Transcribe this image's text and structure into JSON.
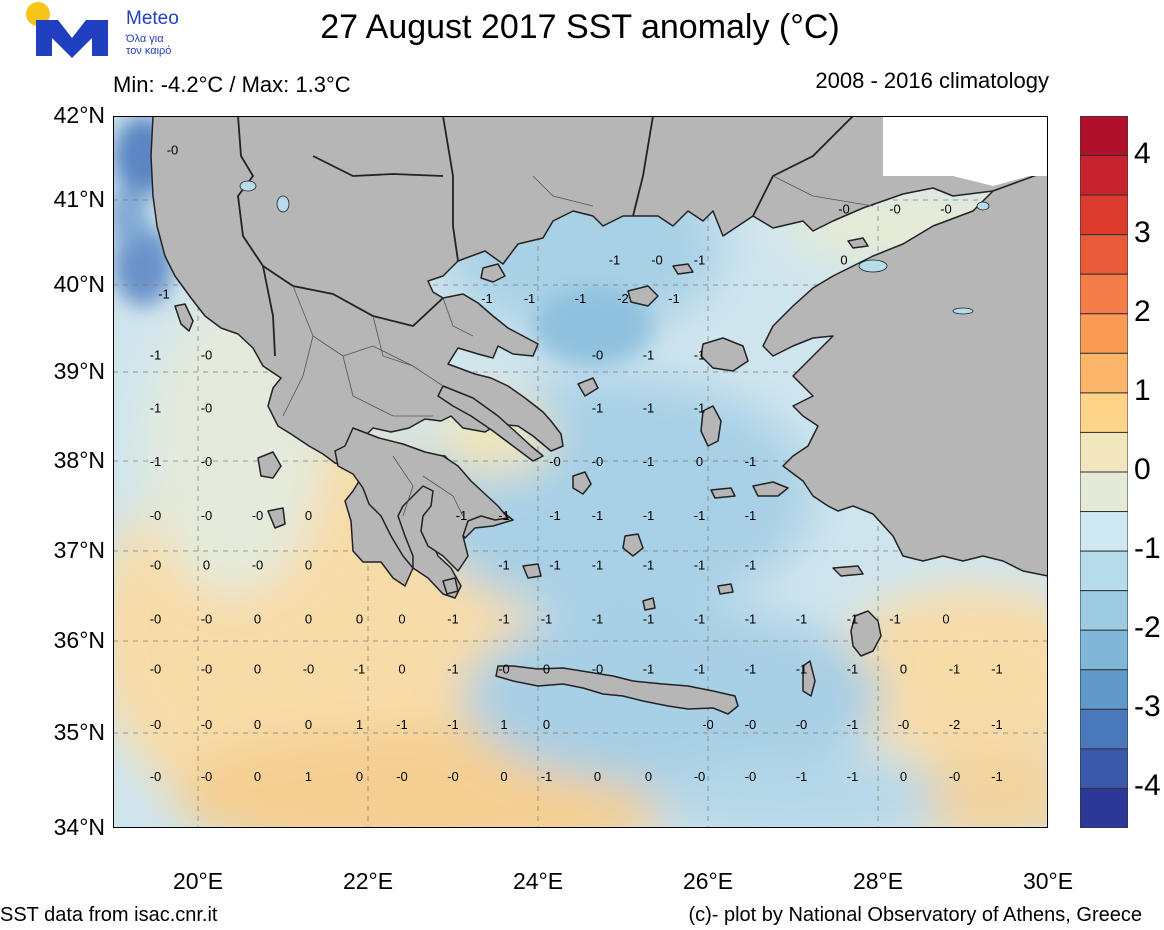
{
  "header": {
    "title": "27 August 2017 SST anomaly (°C)",
    "minmax": "Min: -4.2°C / Max: 1.3°C",
    "climatology": "2008 - 2016 climatology"
  },
  "logo": {
    "name": "Meteo",
    "tagline_1": "Όλα για",
    "tagline_2": "τον καιρό",
    "colors": {
      "sun": "#f5c518",
      "mark": "#1f3fbf"
    }
  },
  "axes": {
    "lat_labels": [
      "42°N",
      "41°N",
      "40°N",
      "39°N",
      "38°N",
      "37°N",
      "36°N",
      "35°N",
      "34°N"
    ],
    "lon_labels": [
      "20°E",
      "22°E",
      "24°E",
      "26°E",
      "28°E",
      "30°E"
    ],
    "lat_range": [
      34,
      42
    ],
    "lon_range": [
      19,
      30
    ],
    "grid": true
  },
  "colorbar": {
    "labels": [
      "4",
      "3",
      "2",
      "1",
      "0",
      "-1",
      "-2",
      "-3",
      "-4"
    ],
    "range": [
      -4.5,
      4.5
    ],
    "colors": [
      "#b0102a",
      "#c8232c",
      "#dc3b2e",
      "#e85a38",
      "#f47c48",
      "#f99b55",
      "#fbb56b",
      "#fdd488",
      "#f1e6bc",
      "#e3ead8",
      "#cfe8f1",
      "#b6dbeb",
      "#9ccbe2",
      "#80b6d8",
      "#6299cb",
      "#4a79bb",
      "#3a58a8",
      "#2b3896"
    ]
  },
  "map_colors": {
    "land": "#b6b6b6",
    "sea_default": "#d3e8ee",
    "warm": "#f8dca8",
    "neutral": "#e4ebdc",
    "cool": "#a8d0e6",
    "cold": "#5a86c3"
  },
  "contour_labels": [
    {
      "v": "-0",
      "lon": 19.7,
      "lat": 41.6
    },
    {
      "v": "-1",
      "lon": 19.6,
      "lat": 39.9
    },
    {
      "v": "-1",
      "lon": 19.5,
      "lat": 39.2
    },
    {
      "v": "-0",
      "lon": 20.1,
      "lat": 39.2
    },
    {
      "v": "-1",
      "lon": 19.5,
      "lat": 38.6
    },
    {
      "v": "-0",
      "lon": 20.1,
      "lat": 38.6
    },
    {
      "v": "-1",
      "lon": 19.5,
      "lat": 38.0
    },
    {
      "v": "-0",
      "lon": 20.1,
      "lat": 38.0
    },
    {
      "v": "-0",
      "lon": 19.5,
      "lat": 37.4
    },
    {
      "v": "-0",
      "lon": 20.1,
      "lat": 37.4
    },
    {
      "v": "-0",
      "lon": 20.7,
      "lat": 37.4
    },
    {
      "v": "0",
      "lon": 21.3,
      "lat": 37.4
    },
    {
      "v": "-0",
      "lon": 19.5,
      "lat": 36.85
    },
    {
      "v": "0",
      "lon": 20.1,
      "lat": 36.85
    },
    {
      "v": "-0",
      "lon": 20.7,
      "lat": 36.85
    },
    {
      "v": "0",
      "lon": 21.3,
      "lat": 36.85
    },
    {
      "v": "-0",
      "lon": 19.5,
      "lat": 36.25
    },
    {
      "v": "-0",
      "lon": 20.1,
      "lat": 36.25
    },
    {
      "v": "0",
      "lon": 20.7,
      "lat": 36.25
    },
    {
      "v": "0",
      "lon": 21.3,
      "lat": 36.25
    },
    {
      "v": "0",
      "lon": 21.9,
      "lat": 36.25
    },
    {
      "v": "0",
      "lon": 22.4,
      "lat": 36.25
    },
    {
      "v": "-0",
      "lon": 19.5,
      "lat": 35.7
    },
    {
      "v": "-0",
      "lon": 20.1,
      "lat": 35.7
    },
    {
      "v": "0",
      "lon": 20.7,
      "lat": 35.7
    },
    {
      "v": "-0",
      "lon": 21.3,
      "lat": 35.7
    },
    {
      "v": "-1",
      "lon": 21.9,
      "lat": 35.7
    },
    {
      "v": "0",
      "lon": 22.4,
      "lat": 35.7
    },
    {
      "v": "-1",
      "lon": 23.0,
      "lat": 35.7
    },
    {
      "v": "-0",
      "lon": 19.5,
      "lat": 35.1
    },
    {
      "v": "-0",
      "lon": 20.1,
      "lat": 35.1
    },
    {
      "v": "0",
      "lon": 20.7,
      "lat": 35.1
    },
    {
      "v": "0",
      "lon": 21.3,
      "lat": 35.1
    },
    {
      "v": "1",
      "lon": 21.9,
      "lat": 35.1
    },
    {
      "v": "-1",
      "lon": 22.4,
      "lat": 35.1
    },
    {
      "v": "-1",
      "lon": 23.0,
      "lat": 35.1
    },
    {
      "v": "1",
      "lon": 23.6,
      "lat": 35.1
    },
    {
      "v": "0",
      "lon": 24.1,
      "lat": 35.1
    },
    {
      "v": "-0",
      "lon": 19.5,
      "lat": 34.55
    },
    {
      "v": "-0",
      "lon": 20.1,
      "lat": 34.55
    },
    {
      "v": "0",
      "lon": 20.7,
      "lat": 34.55
    },
    {
      "v": "1",
      "lon": 21.3,
      "lat": 34.55
    },
    {
      "v": "0",
      "lon": 21.9,
      "lat": 34.55
    },
    {
      "v": "-0",
      "lon": 22.4,
      "lat": 34.55
    },
    {
      "v": "-0",
      "lon": 23.0,
      "lat": 34.55
    },
    {
      "v": "0",
      "lon": 23.6,
      "lat": 34.55
    },
    {
      "v": "-1",
      "lon": 24.1,
      "lat": 34.55
    },
    {
      "v": "0",
      "lon": 24.7,
      "lat": 34.55
    },
    {
      "v": "0",
      "lon": 25.3,
      "lat": 34.55
    },
    {
      "v": "-0",
      "lon": 25.9,
      "lat": 34.55
    },
    {
      "v": "-0",
      "lon": 26.5,
      "lat": 34.55
    },
    {
      "v": "-1",
      "lon": 27.1,
      "lat": 34.55
    },
    {
      "v": "-1",
      "lon": 27.7,
      "lat": 34.55
    },
    {
      "v": "0",
      "lon": 28.3,
      "lat": 34.55
    },
    {
      "v": "-0",
      "lon": 28.9,
      "lat": 34.55
    },
    {
      "v": "-1",
      "lon": 29.4,
      "lat": 34.55
    },
    {
      "v": "-0",
      "lon": 23.6,
      "lat": 35.7
    },
    {
      "v": "0",
      "lon": 24.1,
      "lat": 35.7
    },
    {
      "v": "-0",
      "lon": 24.7,
      "lat": 35.7
    },
    {
      "v": "-1",
      "lon": 25.3,
      "lat": 35.7
    },
    {
      "v": "-1",
      "lon": 25.9,
      "lat": 35.7
    },
    {
      "v": "-1",
      "lon": 26.5,
      "lat": 35.7
    },
    {
      "v": "-1",
      "lon": 27.1,
      "lat": 35.7
    },
    {
      "v": "-1",
      "lon": 27.7,
      "lat": 35.7
    },
    {
      "v": "0",
      "lon": 28.3,
      "lat": 35.7
    },
    {
      "v": "-1",
      "lon": 28.9,
      "lat": 35.7
    },
    {
      "v": "-1",
      "lon": 29.4,
      "lat": 35.7
    },
    {
      "v": "-0",
      "lon": 26.0,
      "lat": 35.1
    },
    {
      "v": "-0",
      "lon": 26.5,
      "lat": 35.1
    },
    {
      "v": "-0",
      "lon": 27.1,
      "lat": 35.1
    },
    {
      "v": "-1",
      "lon": 27.7,
      "lat": 35.1
    },
    {
      "v": "-0",
      "lon": 28.3,
      "lat": 35.1
    },
    {
      "v": "-2",
      "lon": 28.9,
      "lat": 35.1
    },
    {
      "v": "-1",
      "lon": 29.4,
      "lat": 35.1
    },
    {
      "v": "-1",
      "lon": 23.0,
      "lat": 36.25
    },
    {
      "v": "-1",
      "lon": 23.6,
      "lat": 36.25
    },
    {
      "v": "-1",
      "lon": 24.1,
      "lat": 36.25
    },
    {
      "v": "-1",
      "lon": 24.7,
      "lat": 36.25
    },
    {
      "v": "-1",
      "lon": 25.3,
      "lat": 36.25
    },
    {
      "v": "-1",
      "lon": 25.9,
      "lat": 36.25
    },
    {
      "v": "-1",
      "lon": 26.5,
      "lat": 36.25
    },
    {
      "v": "-1",
      "lon": 27.1,
      "lat": 36.25
    },
    {
      "v": "-1",
      "lon": 27.7,
      "lat": 36.25
    },
    {
      "v": "-1",
      "lon": 28.2,
      "lat": 36.25
    },
    {
      "v": "0",
      "lon": 28.8,
      "lat": 36.25
    },
    {
      "v": "-1",
      "lon": 23.1,
      "lat": 37.4
    },
    {
      "v": "-1",
      "lon": 23.6,
      "lat": 37.4
    },
    {
      "v": "-1",
      "lon": 24.2,
      "lat": 37.4
    },
    {
      "v": "-1",
      "lon": 24.7,
      "lat": 37.4
    },
    {
      "v": "-1",
      "lon": 25.3,
      "lat": 37.4
    },
    {
      "v": "-1",
      "lon": 25.9,
      "lat": 37.4
    },
    {
      "v": "-1",
      "lon": 26.5,
      "lat": 37.4
    },
    {
      "v": "-1",
      "lon": 23.6,
      "lat": 36.85
    },
    {
      "v": "-1",
      "lon": 24.2,
      "lat": 36.85
    },
    {
      "v": "-1",
      "lon": 24.7,
      "lat": 36.85
    },
    {
      "v": "-1",
      "lon": 25.3,
      "lat": 36.85
    },
    {
      "v": "-1",
      "lon": 25.9,
      "lat": 36.85
    },
    {
      "v": "-1",
      "lon": 26.5,
      "lat": 36.85
    },
    {
      "v": "-0",
      "lon": 24.2,
      "lat": 38.0
    },
    {
      "v": "-0",
      "lon": 24.7,
      "lat": 38.0
    },
    {
      "v": "-1",
      "lon": 25.3,
      "lat": 38.0
    },
    {
      "v": "0",
      "lon": 25.9,
      "lat": 38.0
    },
    {
      "v": "-1",
      "lon": 26.5,
      "lat": 38.0
    },
    {
      "v": "-1",
      "lon": 24.7,
      "lat": 38.6
    },
    {
      "v": "-1",
      "lon": 25.3,
      "lat": 38.6
    },
    {
      "v": "-1",
      "lon": 25.9,
      "lat": 38.6
    },
    {
      "v": "-0",
      "lon": 24.7,
      "lat": 39.2
    },
    {
      "v": "-1",
      "lon": 25.3,
      "lat": 39.2
    },
    {
      "v": "-1",
      "lon": 25.9,
      "lat": 39.2
    },
    {
      "v": "-1",
      "lon": 23.4,
      "lat": 39.85
    },
    {
      "v": "-1",
      "lon": 23.9,
      "lat": 39.85
    },
    {
      "v": "-1",
      "lon": 24.5,
      "lat": 39.85
    },
    {
      "v": "-2",
      "lon": 25.0,
      "lat": 39.85
    },
    {
      "v": "-1",
      "lon": 25.6,
      "lat": 39.85
    },
    {
      "v": "-1",
      "lon": 24.9,
      "lat": 40.3
    },
    {
      "v": "-0",
      "lon": 25.4,
      "lat": 40.3
    },
    {
      "v": "-1",
      "lon": 25.9,
      "lat": 40.3
    },
    {
      "v": "-0",
      "lon": 27.6,
      "lat": 40.9
    },
    {
      "v": "-0",
      "lon": 28.2,
      "lat": 40.9
    },
    {
      "v": "-0",
      "lon": 28.8,
      "lat": 40.9
    },
    {
      "v": "0",
      "lon": 27.6,
      "lat": 40.3
    }
  ],
  "footer": {
    "source": "SST data from isac.cnr.it",
    "credit": "(c)- plot by National Observatory of Athens, Greece"
  }
}
